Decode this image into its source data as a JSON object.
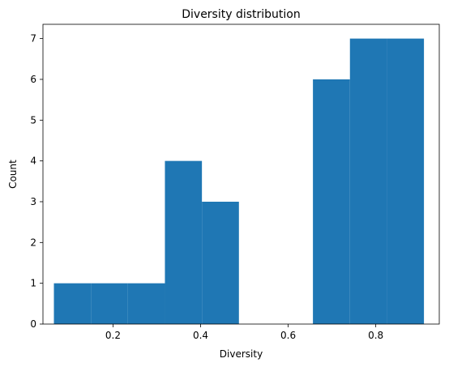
{
  "chart_data": {
    "type": "bar",
    "title": "Diversity distribution",
    "xlabel": "Diversity",
    "ylabel": "Count",
    "xlim": [
      0.04,
      0.945
    ],
    "ylim": [
      0,
      7.35
    ],
    "xticks": [
      0.2,
      0.4,
      0.6,
      0.8
    ],
    "yticks": [
      0,
      1,
      2,
      3,
      4,
      5,
      6,
      7
    ],
    "bin_edges": [
      0.065,
      0.1495,
      0.234,
      0.3185,
      0.403,
      0.4875,
      0.572,
      0.6565,
      0.741,
      0.8255,
      0.91
    ],
    "values": [
      1,
      1,
      1,
      4,
      3,
      0,
      0,
      6,
      7,
      7
    ],
    "bar_color": "#1f77b4",
    "grid": false
  }
}
